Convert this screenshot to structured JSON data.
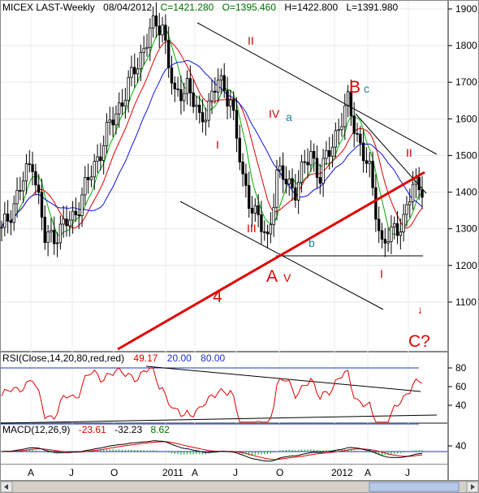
{
  "colors": {
    "candle": "#000000",
    "ma_fast": "#00b000",
    "ma_mid": "#e00000",
    "ma_slow": "#1010e0",
    "wave": "#e00000",
    "wave_blue": "#1f7fa0",
    "wave_green": "#0a8a0a",
    "rsi_line": "#e00000",
    "macd_line": "#000000",
    "signal_line": "#e00000",
    "histogram": "#00a000",
    "axis_blue": "#2030c0"
  },
  "header": {
    "symbol": "MICEX LAST-Weekly",
    "date": "08/04/2012",
    "close": "C=1421.280",
    "open": "O=1395.460",
    "high": "H=1422.800",
    "low": "L=1391.980"
  },
  "rsi_header": {
    "label": "RSI(Close,14,20,80,red,red)",
    "value": "49.17",
    "lower": "20.00",
    "upper": "80.00"
  },
  "macd_header": {
    "label": "MACD(12,26,9)",
    "macd": "-23.61",
    "signal": "-32.23",
    "hist": "8.62"
  },
  "annotations": {
    "big_a": "A",
    "big_b": "B",
    "big_c": "C?",
    "big_4": "4",
    "roman_ii_top": "II",
    "roman_i_left": "I",
    "roman_iv": "IV",
    "roman_iii": "III",
    "roman_v": "V",
    "roman_i_right": "I",
    "roman_ii_right": "II",
    "small_a": "a",
    "small_b": "b",
    "small_c": "c",
    "arrow": "↓"
  },
  "chart_data": [
    {
      "type": "candlestick",
      "title": "MICEX LAST-Weekly",
      "y_ticks": [
        1100,
        1200,
        1300,
        1400,
        1500,
        1600,
        1700,
        1800,
        1900
      ],
      "ylim": [
        1000,
        1930
      ],
      "x_ticks": [
        "A",
        "J",
        "O",
        "2011",
        "A",
        "J",
        "O",
        "2012",
        "A",
        "J"
      ],
      "key_points": [
        {
          "label": "2011 high",
          "value": 1860
        },
        {
          "label": "B",
          "value": 1640
        },
        {
          "label": "A",
          "value": 1245
        },
        {
          "label": "2012 low",
          "value": 1240
        },
        {
          "label": "last close",
          "value": 1421.28
        }
      ],
      "horizontal_support": 1245
    },
    {
      "type": "line",
      "title": "RSI(Close,14,20,80,red,red)",
      "y_ticks": [
        40,
        60,
        80
      ],
      "levels": [
        20,
        80
      ],
      "last_value": 49.17
    },
    {
      "type": "line",
      "title": "MACD(12,26,9)",
      "y_ticks": [
        40
      ],
      "series": [
        {
          "name": "MACD",
          "last_value": -23.61
        },
        {
          "name": "Signal",
          "last_value": -32.23
        },
        {
          "name": "Histogram",
          "last_value": 8.62
        }
      ]
    }
  ]
}
